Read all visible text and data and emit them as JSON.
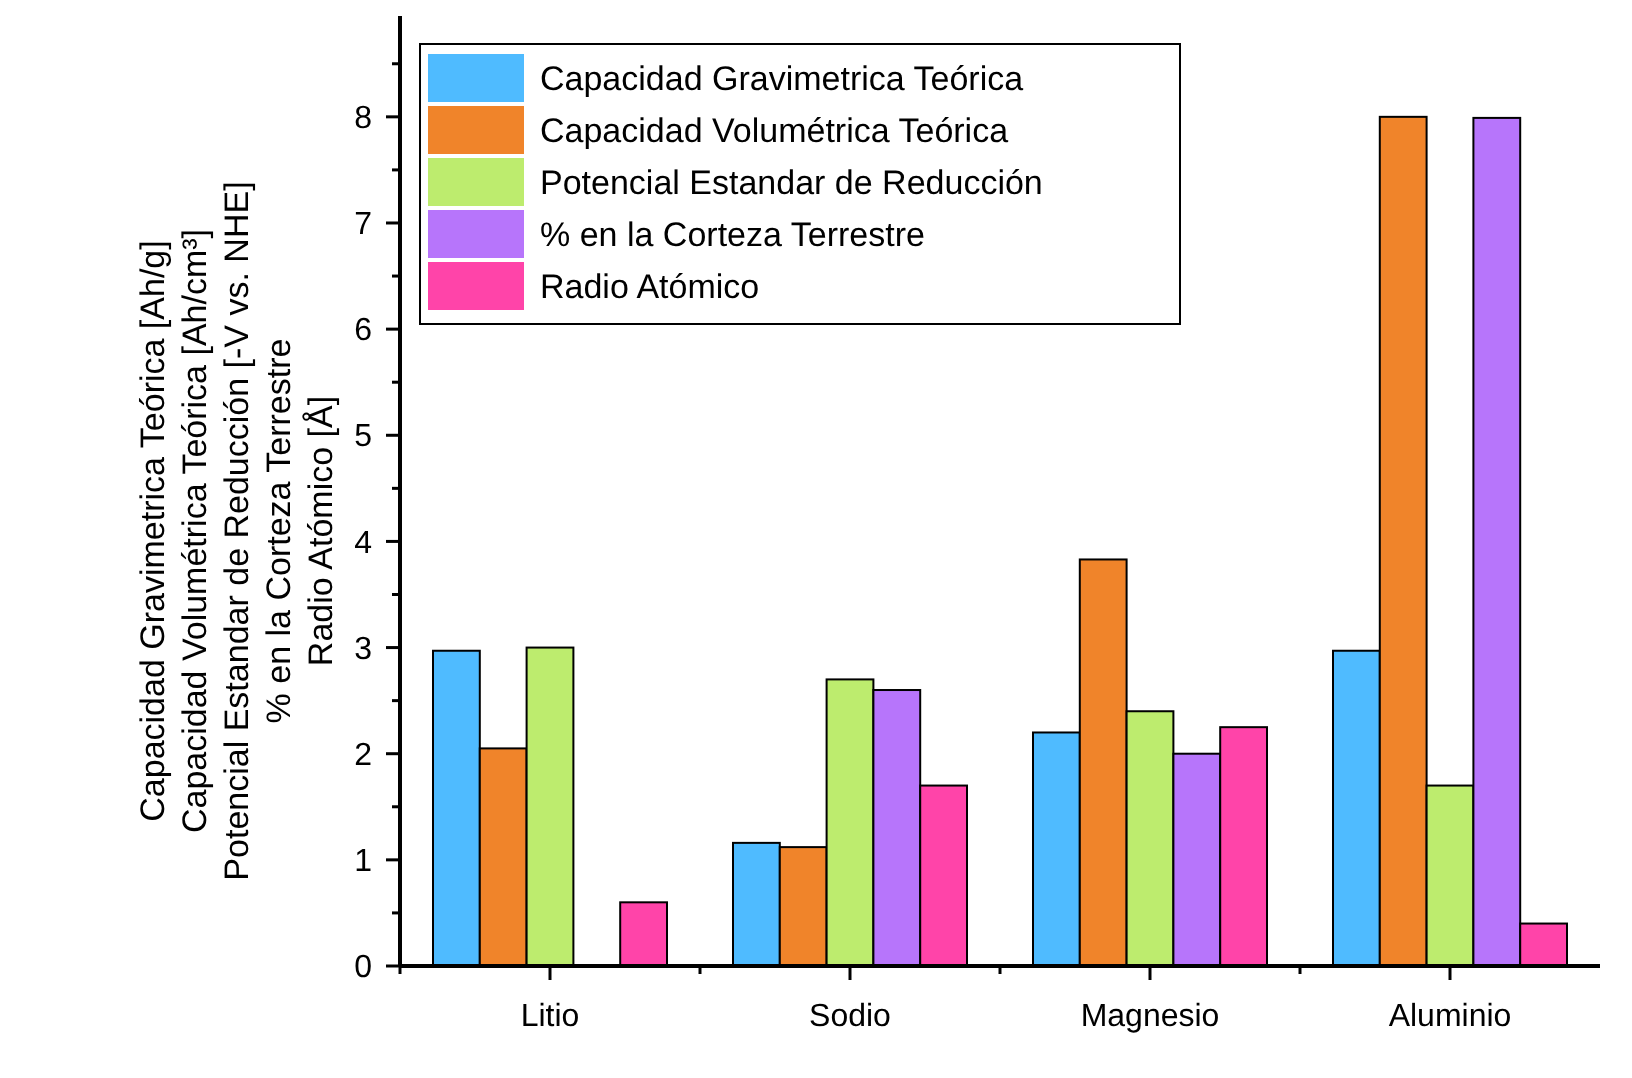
{
  "chart_data": {
    "type": "bar",
    "ylabel": "Capacidad Gravimetrica Teórica [Ah/g]\nCapacidad Volumétrica Teórica [Ah/cm³]\nPotencial Estandar de Reducción [-V vs. NHE]\n% en la Corteza Terrestre\nRadio Atómico [Å]",
    "categories": [
      "Litio",
      "Sodio",
      "Magnesio",
      "Aluminio"
    ],
    "series": [
      {
        "name": "Capacidad Gravimetrica Teórica",
        "color": "#4fbbff",
        "values": [
          2.97,
          1.16,
          2.2,
          2.97
        ]
      },
      {
        "name": "Capacidad Volumétrica Teórica",
        "color": "#f0842a",
        "values": [
          2.05,
          1.12,
          3.83,
          8.0
        ]
      },
      {
        "name": "Potencial Estandar de Reducción",
        "color": "#bdec6e",
        "values": [
          3.0,
          2.7,
          2.4,
          1.7
        ]
      },
      {
        "name": "% en la Corteza Terrestre",
        "color": "#b775fb",
        "values": [
          null,
          2.6,
          2.0,
          7.99
        ]
      },
      {
        "name": "Radio Atómico",
        "color": "#ff44a9",
        "values": [
          0.6,
          1.7,
          2.25,
          0.4
        ]
      }
    ],
    "ylim": [
      0,
      8.95
    ],
    "yticks": [
      0,
      1,
      2,
      3,
      4,
      5,
      6,
      7,
      8
    ],
    "grid": false,
    "legend": "top left"
  }
}
